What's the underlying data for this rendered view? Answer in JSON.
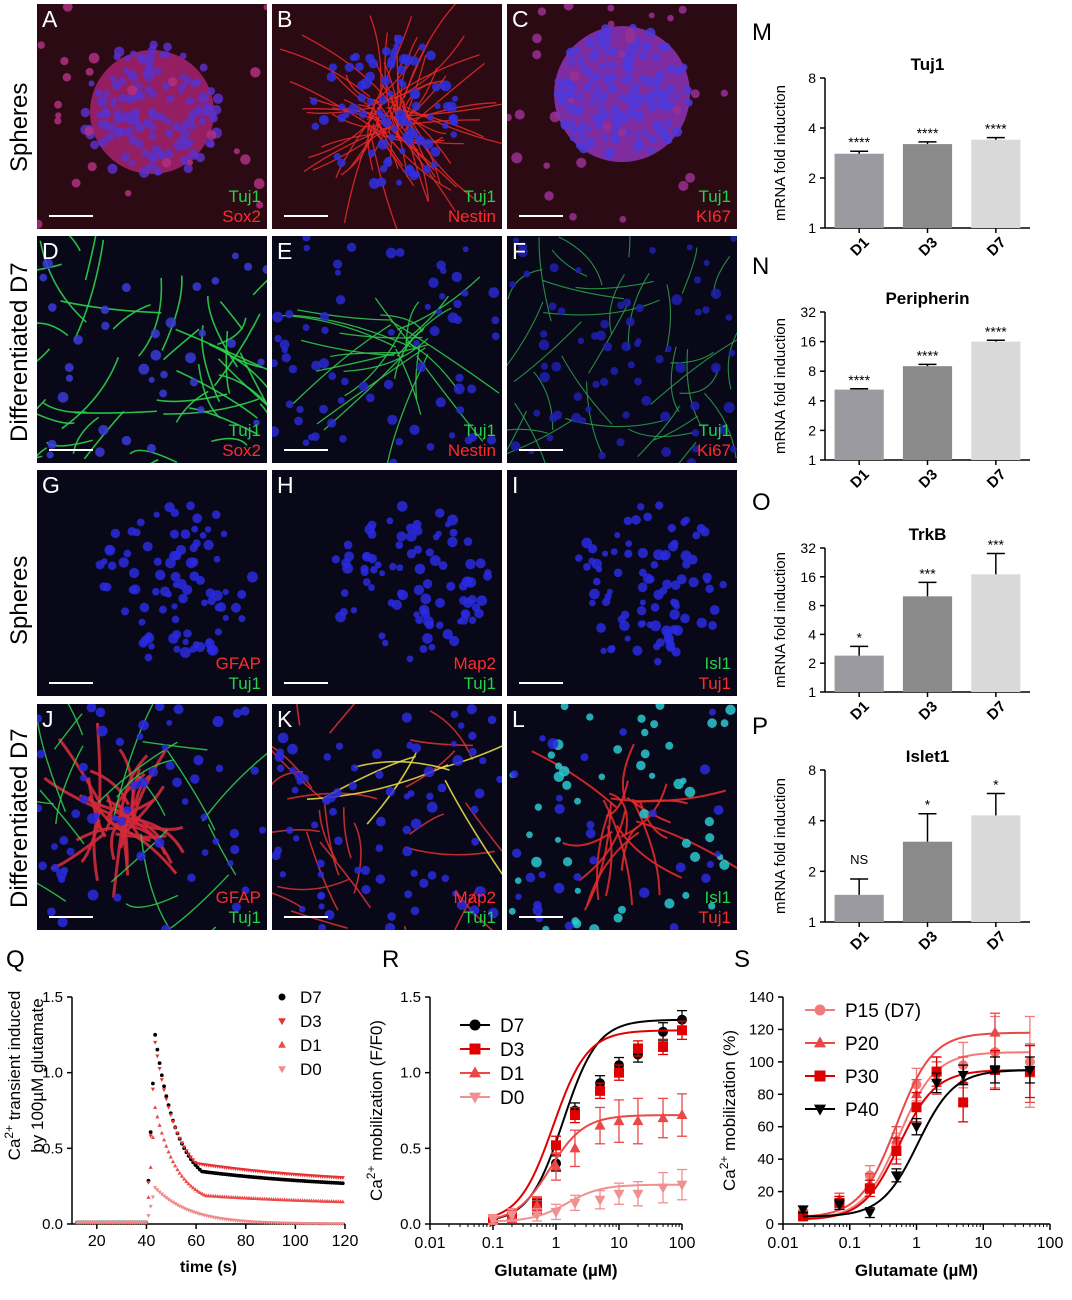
{
  "rows": [
    {
      "label": "Spheres"
    },
    {
      "label": "Differentiated D7"
    },
    {
      "label": "Spheres"
    },
    {
      "label": "Differentiated D7"
    }
  ],
  "micrographs": [
    {
      "letter": "A",
      "label1": "Tuj1",
      "label1_color": "green",
      "label2": "Sox2",
      "label2_color": "red",
      "style": "sphere-red"
    },
    {
      "letter": "B",
      "label1": "Tuj1",
      "label1_color": "green",
      "label2": "Nestin",
      "label2_color": "red",
      "style": "sphere-nestin"
    },
    {
      "letter": "C",
      "label1": "Tuj1",
      "label1_color": "green",
      "label2": "KI67",
      "label2_color": "red",
      "style": "sphere-ki67"
    },
    {
      "letter": "D",
      "label1": "Tuj1",
      "label1_color": "green",
      "label2": "Sox2",
      "label2_color": "red",
      "style": "neurons-green"
    },
    {
      "letter": "E",
      "label1": "Tuj1",
      "label1_color": "green",
      "label2": "Nestin",
      "label2_color": "red",
      "style": "neurons-green-sparse"
    },
    {
      "letter": "F",
      "label1": "Tuj1",
      "label1_color": "green",
      "label2": "Ki67",
      "label2_color": "red",
      "style": "neurons-green-dim"
    },
    {
      "letter": "G",
      "label1": "GFAP",
      "label1_color": "red",
      "label2": "Tuj1",
      "label2_color": "green",
      "style": "nuclei-only"
    },
    {
      "letter": "H",
      "label1": "Map2",
      "label1_color": "red",
      "label2": "Tuj1",
      "label2_color": "green",
      "style": "nuclei-only"
    },
    {
      "letter": "I",
      "label1": "Isl1",
      "label1_color": "green",
      "label2": "Tuj1",
      "label2_color": "red",
      "style": "nuclei-only"
    },
    {
      "letter": "J",
      "label1": "GFAP",
      "label1_color": "red",
      "label2": "Tuj1",
      "label2_color": "green",
      "style": "gfap-mixed"
    },
    {
      "letter": "K",
      "label1": "Map2",
      "label1_color": "red",
      "label2": "Tuj1",
      "label2_color": "green",
      "style": "map2-mixed"
    },
    {
      "letter": "L",
      "label1": "Isl1",
      "label1_color": "green",
      "label2": "Tuj1",
      "label2_color": "red",
      "style": "isl1-mixed"
    }
  ],
  "chart_data": [
    {
      "panel": "M",
      "type": "bar",
      "title": "Tuj1",
      "ylabel": "mRNA fold induction",
      "yscale": "log2",
      "yticks": [
        "1",
        "2",
        "4",
        "8"
      ],
      "ylim": [
        1,
        8
      ],
      "categories": [
        "D1",
        "D3",
        "D7"
      ],
      "values": [
        2.8,
        3.2,
        3.4
      ],
      "errors": [
        0.1,
        0.1,
        0.1
      ],
      "significance": [
        "****",
        "****",
        "****"
      ],
      "colors": [
        "#9a9aa0",
        "#8a8a8a",
        "#d9d9d9"
      ]
    },
    {
      "panel": "N",
      "type": "bar",
      "title": "Peripherin",
      "ylabel": "mRNA fold induction",
      "yscale": "log2",
      "yticks": [
        "1",
        "2",
        "4",
        "8",
        "16",
        "32"
      ],
      "ylim": [
        1,
        32
      ],
      "categories": [
        "D1",
        "D3",
        "D7"
      ],
      "values": [
        5.2,
        9,
        16
      ],
      "errors": [
        0.1,
        0.4,
        0.5
      ],
      "significance": [
        "****",
        "****",
        "****"
      ],
      "colors": [
        "#9a9aa0",
        "#8a8a8a",
        "#d9d9d9"
      ]
    },
    {
      "panel": "O",
      "type": "bar",
      "title": "TrkB",
      "ylabel": "mRNA fold induction",
      "yscale": "log2",
      "yticks": [
        "1",
        "2",
        "4",
        "8",
        "16",
        "32"
      ],
      "ylim": [
        1,
        32
      ],
      "categories": [
        "D1",
        "D3",
        "D7"
      ],
      "values": [
        2.4,
        10,
        17
      ],
      "errors": [
        0.6,
        4,
        11
      ],
      "significance": [
        "*",
        "***",
        "***"
      ],
      "colors": [
        "#9a9aa0",
        "#8a8a8a",
        "#d9d9d9"
      ]
    },
    {
      "panel": "P",
      "type": "bar",
      "title": "Islet1",
      "ylabel": "mRNA fold induction",
      "yscale": "log2",
      "yticks": [
        "1",
        "2",
        "4",
        "8"
      ],
      "ylim": [
        1,
        8
      ],
      "categories": [
        "D1",
        "D3",
        "D7"
      ],
      "values": [
        1.45,
        3.0,
        4.3
      ],
      "errors": [
        0.35,
        1.4,
        1.5
      ],
      "significance": [
        "NS",
        "*",
        "*"
      ],
      "colors": [
        "#9a9aa0",
        "#8a8a8a",
        "#d9d9d9"
      ]
    },
    {
      "panel": "Q",
      "type": "scatter",
      "ylabel_html": "Ca<tspan baseline-shift=\"super\" font-size=\"12\">2+</tspan> transient induced",
      "ylabel_line2": "by 100µM glutamate",
      "xlabel": "time (s)",
      "xlim": [
        10,
        120
      ],
      "ylim": [
        0,
        1.5
      ],
      "xticks": [
        20,
        40,
        60,
        80,
        100,
        120
      ],
      "yticks": [
        0.0,
        0.5,
        1.0,
        1.5
      ],
      "series": [
        {
          "name": "D7",
          "color": "#000000",
          "marker": "circle",
          "peak": 1.25,
          "plateau": 0.22
        },
        {
          "name": "D3",
          "color": "#e83232",
          "marker": "triangle-down",
          "peak": 1.2,
          "plateau": 0.25
        },
        {
          "name": "D1",
          "color": "#ea4a4a",
          "marker": "triangle-up",
          "peak": 0.77,
          "plateau": 0.12
        },
        {
          "name": "D0",
          "color": "#f08a8a",
          "marker": "triangle-down",
          "peak": 0.24,
          "plateau": 0.0
        }
      ],
      "onset": 40
    },
    {
      "panel": "R",
      "type": "scatter",
      "ylabel_html": "Ca<tspan baseline-shift=\"super\" font-size=\"12\">2+</tspan> mobilization (F/F0)",
      "xlabel": "Glutamate (µM)",
      "xscale": "log10",
      "xlim": [
        0.01,
        100
      ],
      "ylim": [
        0,
        1.5
      ],
      "xticks": [
        "0.01",
        "0.1",
        "1",
        "10",
        "100"
      ],
      "yticks": [
        "0.0",
        "0.5",
        "1.0",
        "1.5"
      ],
      "x": [
        0.1,
        0.2,
        0.5,
        1,
        2,
        5,
        10,
        20,
        50,
        100
      ],
      "series": [
        {
          "name": "D7",
          "color": "#000000",
          "marker": "circle",
          "values": [
            0.02,
            0.05,
            0.12,
            0.4,
            0.75,
            0.93,
            1.05,
            1.12,
            1.27,
            1.35
          ],
          "errors": [
            0.03,
            0.03,
            0.04,
            0.05,
            0.05,
            0.05,
            0.05,
            0.05,
            0.06,
            0.06
          ]
        },
        {
          "name": "D3",
          "color": "#e00000",
          "marker": "square",
          "values": [
            0.03,
            0.06,
            0.12,
            0.52,
            0.72,
            0.88,
            1.0,
            1.16,
            1.17,
            1.28
          ],
          "errors": [
            0.03,
            0.04,
            0.05,
            0.06,
            0.05,
            0.05,
            0.05,
            0.05,
            0.05,
            0.06
          ]
        },
        {
          "name": "D1",
          "color": "#ec4848",
          "marker": "triangle-up",
          "values": [
            0.02,
            0.05,
            0.12,
            0.38,
            0.5,
            0.65,
            0.68,
            0.68,
            0.7,
            0.72
          ],
          "errors": [
            0.03,
            0.04,
            0.06,
            0.09,
            0.12,
            0.12,
            0.14,
            0.15,
            0.13,
            0.14
          ]
        },
        {
          "name": "D0",
          "color": "#f09090",
          "marker": "triangle-down",
          "values": [
            0.03,
            0.06,
            0.06,
            0.08,
            0.14,
            0.16,
            0.2,
            0.2,
            0.24,
            0.26
          ],
          "errors": [
            0.03,
            0.04,
            0.04,
            0.05,
            0.05,
            0.06,
            0.07,
            0.08,
            0.1,
            0.1
          ]
        }
      ]
    },
    {
      "panel": "S",
      "type": "scatter",
      "ylabel_html": "Ca<tspan baseline-shift=\"super\" font-size=\"12\">2+</tspan> mobilization (%)",
      "xlabel": "Glutamate (µM)",
      "xscale": "log10",
      "xlim": [
        0.01,
        100
      ],
      "ylim": [
        0,
        140
      ],
      "xticks": [
        "0.01",
        "0.1",
        "1",
        "10",
        "100"
      ],
      "yticks": [
        "0",
        "20",
        "40",
        "60",
        "80",
        "100",
        "120",
        "140"
      ],
      "x": [
        0.02,
        0.07,
        0.2,
        0.5,
        1,
        2,
        5,
        15,
        50
      ],
      "series": [
        {
          "name": "P15 (D7)",
          "color": "#f47a7a",
          "marker": "circle",
          "values": [
            6,
            13,
            30,
            48,
            86,
            93,
            98,
            106,
            100
          ],
          "errors": [
            3,
            4,
            6,
            8,
            10,
            10,
            14,
            22,
            28
          ]
        },
        {
          "name": "P20",
          "color": "#e84848",
          "marker": "triangle-up",
          "values": [
            8,
            15,
            25,
            52,
            80,
            90,
            88,
            118,
            93
          ],
          "errors": [
            3,
            4,
            6,
            8,
            9,
            10,
            15,
            12,
            18
          ]
        },
        {
          "name": "P30",
          "color": "#dd0000",
          "marker": "square",
          "values": [
            5,
            13,
            22,
            45,
            72,
            94,
            75,
            95,
            94
          ],
          "errors": [
            3,
            4,
            5,
            8,
            9,
            9,
            12,
            12,
            16
          ]
        },
        {
          "name": "P40",
          "color": "#000000",
          "marker": "triangle-down",
          "values": [
            9,
            12,
            7,
            30,
            60,
            87,
            92,
            95,
            95
          ],
          "errors": [
            2,
            3,
            3,
            4,
            5,
            6,
            6,
            8,
            8
          ]
        }
      ]
    }
  ]
}
